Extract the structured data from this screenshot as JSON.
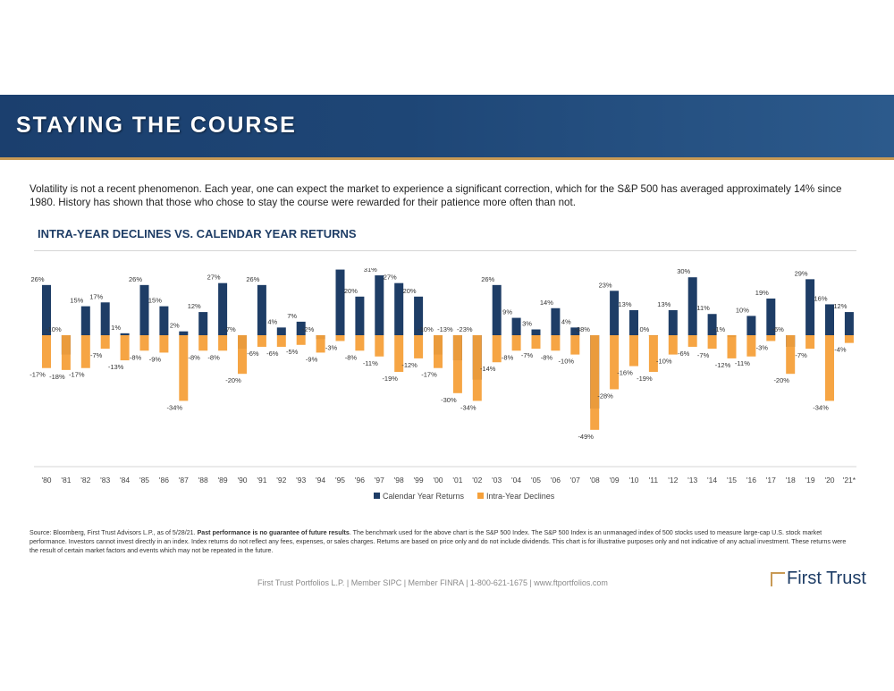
{
  "header": {
    "title": "STAYING THE COURSE"
  },
  "intro": "Volatility is not a recent phenomenon. Each year, one can expect the market to experience a significant correction, which for the S&P 500 has averaged approximately 14% since 1980. History has shown that those who chose to stay the course were rewarded for their patience more often than not.",
  "colors": {
    "calendar": "#1e3d66",
    "intra": "#f5a03a",
    "banner": "#1e4676",
    "accent": "#c89a55"
  },
  "chart_data": {
    "type": "bar",
    "title": "INTRA-YEAR DECLINES VS. CALENDAR YEAR RETURNS",
    "categories": [
      "'80",
      "'81",
      "'82",
      "'83",
      "'84",
      "'85",
      "'86",
      "'87",
      "'88",
      "'89",
      "'90",
      "'91",
      "'92",
      "'93",
      "'94",
      "'95",
      "'96",
      "'97",
      "'98",
      "'99",
      "'00",
      "'01",
      "'02",
      "'03",
      "'04",
      "'05",
      "'06",
      "'07",
      "'08",
      "'09",
      "'10",
      "'11",
      "'12",
      "'13",
      "'14",
      "'15",
      "'16",
      "'17",
      "'18",
      "'19",
      "'20",
      "'21*"
    ],
    "series": [
      {
        "name": "Calendar Year Returns",
        "values": [
          26,
          -10,
          15,
          17,
          1,
          26,
          15,
          2,
          12,
          27,
          -7,
          26,
          4,
          7,
          -2,
          34,
          20,
          31,
          27,
          20,
          -10,
          -13,
          -23,
          26,
          9,
          3,
          14,
          4,
          -38,
          23,
          13,
          0,
          13,
          30,
          11,
          -1,
          10,
          19,
          -6,
          29,
          16,
          12
        ]
      },
      {
        "name": "Intra-Year Declines",
        "values": [
          -17,
          -18,
          -17,
          -7,
          -13,
          -8,
          -9,
          -34,
          -8,
          -8,
          -20,
          -6,
          -6,
          -5,
          -9,
          -3,
          -8,
          -11,
          -19,
          -12,
          -17,
          -30,
          -34,
          -14,
          -8,
          -7,
          -8,
          -10,
          -49,
          -28,
          -16,
          -19,
          -10,
          -6,
          -7,
          -12,
          -11,
          -3,
          -20,
          -7,
          -34,
          -4
        ]
      }
    ],
    "legend": [
      "Calendar Year Returns",
      "Intra-Year Declines"
    ],
    "legend_position": "bottom",
    "ylim": [
      -50,
      35
    ],
    "grid": false
  },
  "footnote": {
    "prefix": "Source: Bloomberg, First Trust Advisors L.P., as of 5/28/21.",
    "bold": "Past performance is no guarantee of future results",
    "suffix": ". The benchmark used for the above chart is the S&P 500 Index. The S&P 500 Index is an unmanaged index of 500 stocks used to measure large-cap U.S. stock market performance. Investors cannot invest directly in an index. Index returns do not reflect any fees, expenses, or sales charges. Returns are based on price only and do not include dividends. This chart is for illustrative purposes only and not indicative of any actual investment. These returns were the result of certain market factors and events which may not be repeated in the future."
  },
  "footer": {
    "text": "First Trust Portfolios L.P. | Member SIPC | Member FINRA | 1-800-621-1675 | www.ftportfolios.com"
  },
  "logo": {
    "text": "First Trust"
  }
}
